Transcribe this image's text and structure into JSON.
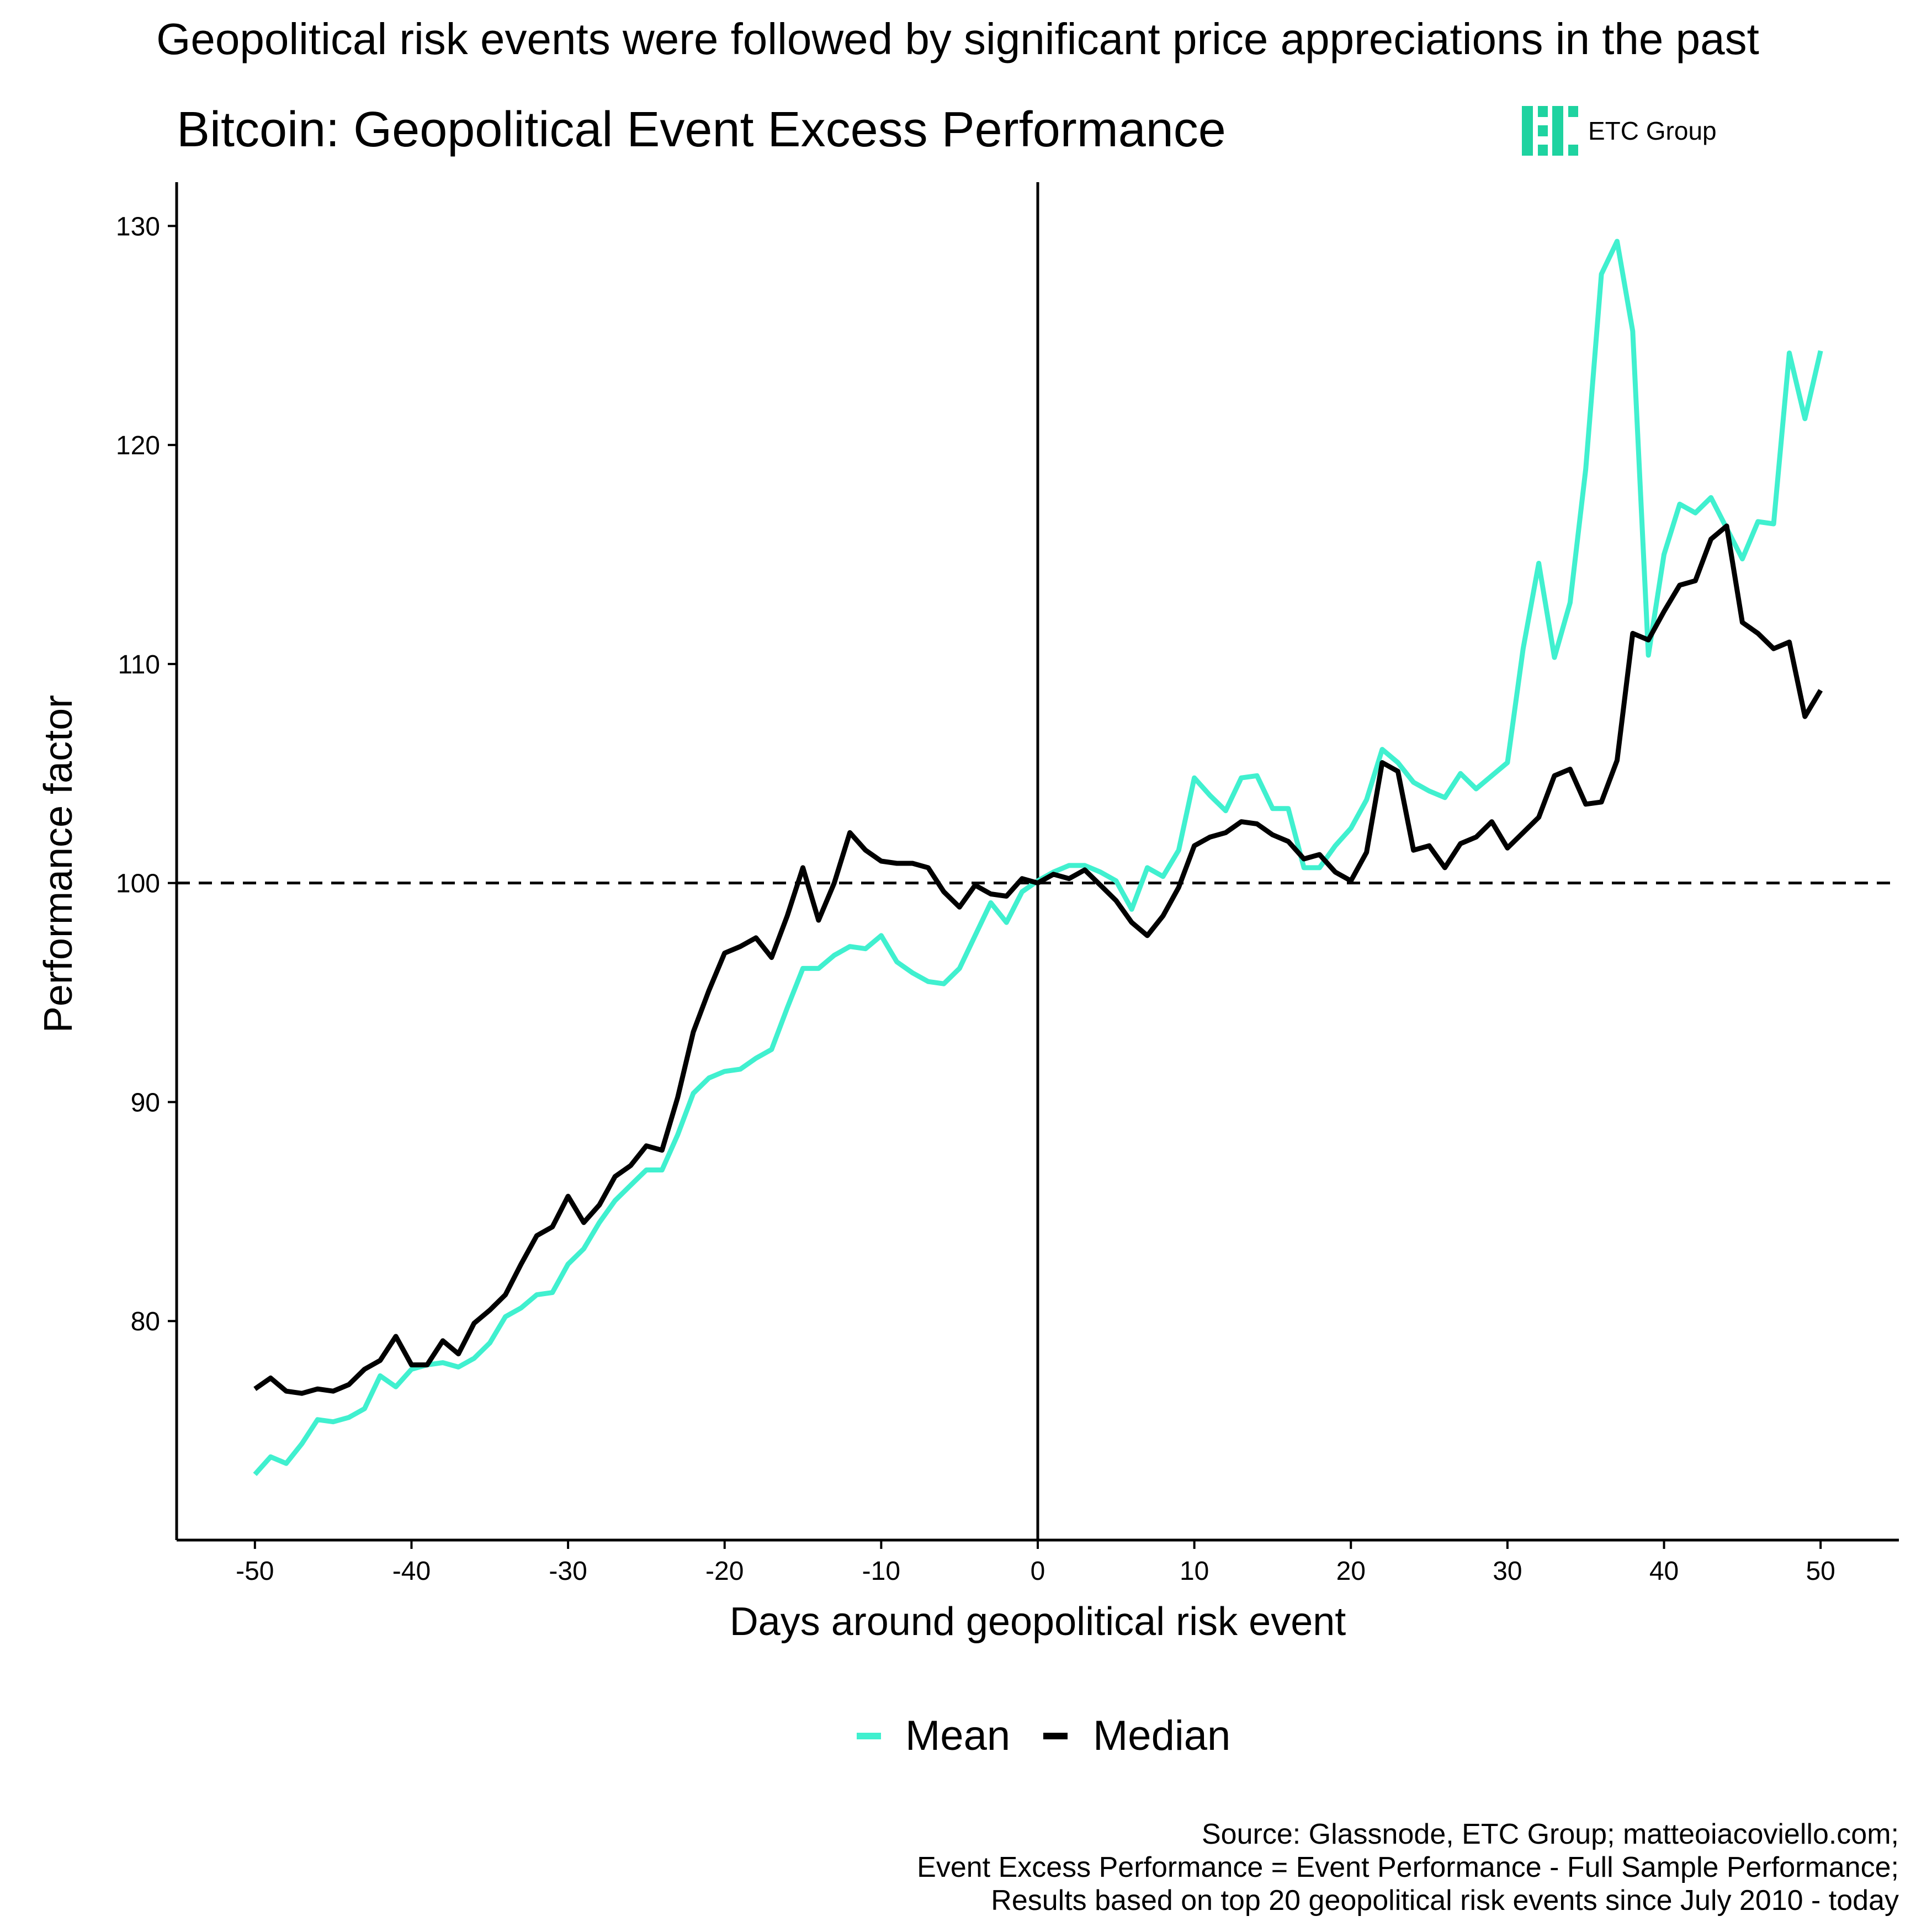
{
  "header": {
    "headline": "Geopolitical risk events were followed by significant price appreciations in the past",
    "title": "Bitcoin: Geopolitical Event Excess Performance",
    "logo_text": "ETC Group"
  },
  "legend": {
    "items": [
      {
        "label": "Mean",
        "color": "#40f0cf"
      },
      {
        "label": "Median",
        "color": "#000000"
      }
    ],
    "placement": "bottom"
  },
  "footer": {
    "lines": [
      "Source: Glassnode, ETC Group; matteoiacoviello.com;",
      "Event Excess Performance = Event Performance - Full Sample Performance;",
      "Results based on top 20 geopolitical risk events since July 2010 - today"
    ]
  },
  "colors": {
    "mean": "#40f0cf",
    "median": "#000000",
    "logo": "#1ed3a0"
  },
  "chart_data": {
    "type": "line",
    "title": "Bitcoin: Geopolitical Event Excess Performance",
    "xlabel": "Days around geopolitical risk event",
    "ylabel": "Performance factor",
    "xlim": [
      -55,
      55
    ],
    "ylim": [
      70,
      132
    ],
    "x_ticks": [
      -50,
      -40,
      -30,
      -20,
      -10,
      0,
      10,
      20,
      30,
      40,
      50
    ],
    "y_ticks": [
      80,
      90,
      100,
      110,
      120,
      130
    ],
    "reference_lines": {
      "horizontal_dashed": 100,
      "vertical_solid": 0
    },
    "grid": false,
    "x": [
      -50,
      -49,
      -48,
      -47,
      -46,
      -45,
      -44,
      -43,
      -42,
      -41,
      -40,
      -39,
      -38,
      -37,
      -36,
      -35,
      -34,
      -33,
      -32,
      -31,
      -30,
      -29,
      -28,
      -27,
      -26,
      -25,
      -24,
      -23,
      -22,
      -21,
      -20,
      -19,
      -18,
      -17,
      -16,
      -15,
      -14,
      -13,
      -12,
      -11,
      -10,
      -9,
      -8,
      -7,
      -6,
      -5,
      -4,
      -3,
      -2,
      -1,
      0,
      1,
      2,
      3,
      4,
      5,
      6,
      7,
      8,
      9,
      10,
      11,
      12,
      13,
      14,
      15,
      16,
      17,
      18,
      19,
      20,
      21,
      22,
      23,
      24,
      25,
      26,
      27,
      28,
      29,
      30,
      31,
      32,
      33,
      34,
      35,
      36,
      37,
      38,
      39,
      40,
      41,
      42,
      43,
      44,
      45,
      46,
      47,
      48,
      49,
      50
    ],
    "series": [
      {
        "name": "Mean",
        "values": [
          73.0,
          73.8,
          73.5,
          74.4,
          75.5,
          75.4,
          75.6,
          76.0,
          77.5,
          77.0,
          77.8,
          78.0,
          78.1,
          77.9,
          78.3,
          79.0,
          80.2,
          80.6,
          81.2,
          81.3,
          82.6,
          83.3,
          84.5,
          85.5,
          86.2,
          86.9,
          86.9,
          88.5,
          90.4,
          91.1,
          91.4,
          91.5,
          92.0,
          92.4,
          94.3,
          96.1,
          96.1,
          96.7,
          97.1,
          97.0,
          97.6,
          96.4,
          95.9,
          95.5,
          95.4,
          96.1,
          97.6,
          99.1,
          98.2,
          99.6,
          100.1,
          100.5,
          100.8,
          100.8,
          100.5,
          100.1,
          98.8,
          100.7,
          100.3,
          101.5,
          104.8,
          104.0,
          103.3,
          104.8,
          104.9,
          103.4,
          103.4,
          100.7,
          100.7,
          101.7,
          102.5,
          103.8,
          106.1,
          105.5,
          104.6,
          104.2,
          103.9,
          105.0,
          104.3,
          104.9,
          105.5,
          110.7,
          114.6,
          110.3,
          112.8,
          118.9,
          127.8,
          129.3,
          125.2,
          110.4,
          115.0,
          117.3,
          116.9,
          117.6,
          116.2,
          114.8,
          116.5,
          116.4,
          124.2,
          121.2,
          124.3
        ]
      },
      {
        "name": "Median",
        "values": [
          76.9,
          77.4,
          76.8,
          76.7,
          76.9,
          76.8,
          77.1,
          77.8,
          78.2,
          79.3,
          78.0,
          78.0,
          79.1,
          78.5,
          79.9,
          80.5,
          81.2,
          82.6,
          83.9,
          84.3,
          85.7,
          84.5,
          85.3,
          86.6,
          87.1,
          88.0,
          87.8,
          90.2,
          93.2,
          95.1,
          96.8,
          97.1,
          97.5,
          96.6,
          98.5,
          100.7,
          98.3,
          100.0,
          102.3,
          101.5,
          101.0,
          100.9,
          100.9,
          100.7,
          99.6,
          98.9,
          99.9,
          99.5,
          99.4,
          100.2,
          100.0,
          100.4,
          100.2,
          100.6,
          99.9,
          99.2,
          98.2,
          97.6,
          98.5,
          99.8,
          101.7,
          102.1,
          102.3,
          102.8,
          102.7,
          102.2,
          101.9,
          101.1,
          101.3,
          100.5,
          100.1,
          101.4,
          105.5,
          105.1,
          101.5,
          101.7,
          100.7,
          101.8,
          102.1,
          102.8,
          101.6,
          102.3,
          103.0,
          104.9,
          105.2,
          103.6,
          103.7,
          105.6,
          111.4,
          111.1,
          112.4,
          113.6,
          113.8,
          115.7,
          116.3,
          111.9,
          111.4,
          110.7,
          111.0,
          107.6,
          108.8
        ]
      }
    ]
  }
}
